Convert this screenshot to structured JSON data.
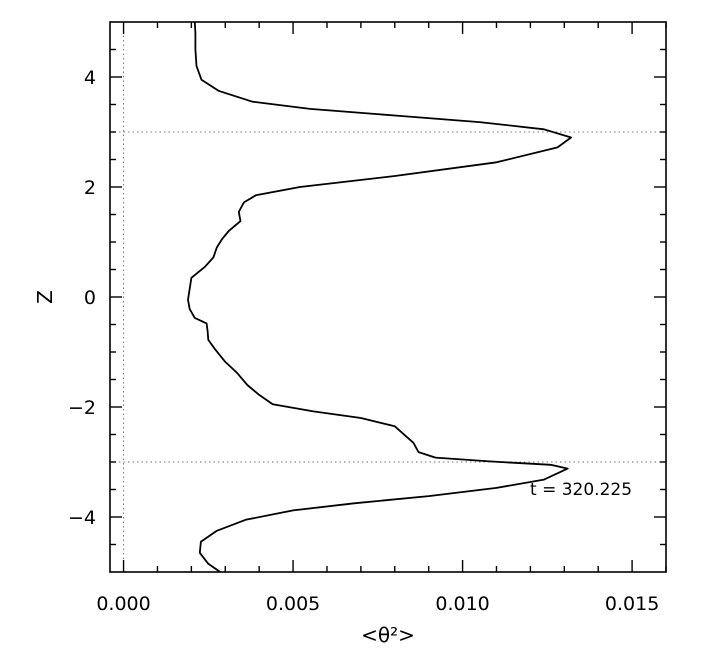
{
  "chart_data": {
    "type": "line",
    "title": "",
    "xlabel": "<θ²>",
    "ylabel": "Z",
    "xlim": [
      -0.0004,
      0.016
    ],
    "ylim": [
      -5,
      5
    ],
    "x_ticks": [
      0.0,
      0.005,
      0.01,
      0.015
    ],
    "x_tick_labels": [
      "0.000",
      "0.005",
      "0.010",
      "0.015"
    ],
    "y_ticks": [
      -4,
      -2,
      0,
      2,
      4
    ],
    "y_tick_labels": [
      "−4",
      "−2",
      "0",
      "2",
      "4"
    ],
    "grid": false,
    "reference_lines": {
      "vertical_x": 0.0,
      "horizontal_z": [
        3.0,
        -3.0
      ]
    },
    "annotation": "t = 320.225",
    "series": [
      {
        "color": "#000000",
        "points": [
          [
            0.00285,
            -5.0
          ],
          [
            0.0025,
            -4.85
          ],
          [
            0.00225,
            -4.65
          ],
          [
            0.00228,
            -4.45
          ],
          [
            0.00275,
            -4.25
          ],
          [
            0.0036,
            -4.05
          ],
          [
            0.005,
            -3.88
          ],
          [
            0.0068,
            -3.75
          ],
          [
            0.009,
            -3.62
          ],
          [
            0.011,
            -3.47
          ],
          [
            0.0124,
            -3.32
          ],
          [
            0.0131,
            -3.12
          ],
          [
            0.0126,
            -3.05
          ],
          [
            0.0108,
            -2.99
          ],
          [
            0.0092,
            -2.92
          ],
          [
            0.0087,
            -2.82
          ],
          [
            0.00855,
            -2.65
          ],
          [
            0.008,
            -2.35
          ],
          [
            0.007,
            -2.2
          ],
          [
            0.0056,
            -2.08
          ],
          [
            0.0044,
            -1.95
          ],
          [
            0.004,
            -1.78
          ],
          [
            0.00365,
            -1.6
          ],
          [
            0.00335,
            -1.38
          ],
          [
            0.003,
            -1.18
          ],
          [
            0.0027,
            -0.95
          ],
          [
            0.0025,
            -0.78
          ],
          [
            0.00248,
            -0.62
          ],
          [
            0.00245,
            -0.48
          ],
          [
            0.0021,
            -0.38
          ],
          [
            0.00195,
            -0.22
          ],
          [
            0.0019,
            -0.05
          ],
          [
            0.00195,
            0.15
          ],
          [
            0.002,
            0.35
          ],
          [
            0.0024,
            0.55
          ],
          [
            0.00265,
            0.72
          ],
          [
            0.00275,
            0.9
          ],
          [
            0.0029,
            1.05
          ],
          [
            0.0031,
            1.2
          ],
          [
            0.00345,
            1.38
          ],
          [
            0.0034,
            1.55
          ],
          [
            0.00355,
            1.72
          ],
          [
            0.0039,
            1.85
          ],
          [
            0.0052,
            2.0
          ],
          [
            0.008,
            2.2
          ],
          [
            0.011,
            2.45
          ],
          [
            0.0128,
            2.72
          ],
          [
            0.0132,
            2.9
          ],
          [
            0.0124,
            3.05
          ],
          [
            0.0105,
            3.18
          ],
          [
            0.008,
            3.3
          ],
          [
            0.0055,
            3.42
          ],
          [
            0.0038,
            3.55
          ],
          [
            0.0028,
            3.75
          ],
          [
            0.0023,
            3.95
          ],
          [
            0.00215,
            4.2
          ],
          [
            0.00212,
            4.5
          ],
          [
            0.00212,
            4.8
          ],
          [
            0.0021,
            5.0
          ]
        ]
      }
    ]
  }
}
